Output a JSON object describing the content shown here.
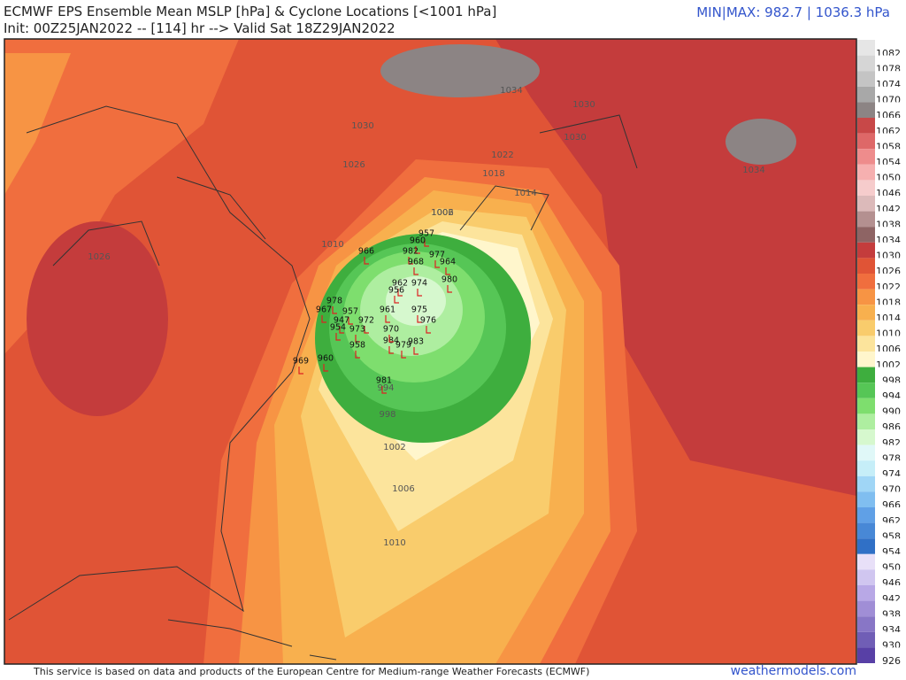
{
  "header": {
    "title": "ECMWF EPS Ensemble Mean MSLP [hPa] & Cyclone Locations [<1001 hPa]",
    "subtitle": "Init: 00Z25JAN2022 -- [114] hr --> Valid Sat 18Z29JAN2022",
    "minmax": "MIN|MAX: 982.7 | 1036.3 hPa"
  },
  "colorbar": [
    {
      "label": "1082",
      "color": "#e6e6e6"
    },
    {
      "label": "1078",
      "color": "#d6d6d6"
    },
    {
      "label": "1074",
      "color": "#c4c4c4"
    },
    {
      "label": "1070",
      "color": "#a8a8a8"
    },
    {
      "label": "1066",
      "color": "#8c8484"
    },
    {
      "label": "1062",
      "color": "#c84848"
    },
    {
      "label": "1058",
      "color": "#de6868"
    },
    {
      "label": "1054",
      "color": "#ee8c8c"
    },
    {
      "label": "1050",
      "color": "#f6b0b0"
    },
    {
      "label": "1046",
      "color": "#f6cccc"
    },
    {
      "label": "1042",
      "color": "#dcbaba"
    },
    {
      "label": "1038",
      "color": "#b49090"
    },
    {
      "label": "1034",
      "color": "#8e6464"
    },
    {
      "label": "1030",
      "color": "#c43c3c"
    },
    {
      "label": "1026",
      "color": "#e05436"
    },
    {
      "label": "1022",
      "color": "#f06e3e"
    },
    {
      "label": "1018",
      "color": "#f79444"
    },
    {
      "label": "1014",
      "color": "#f8b04e"
    },
    {
      "label": "1010",
      "color": "#f9cc6c"
    },
    {
      "label": "1006",
      "color": "#fce49c"
    },
    {
      "label": "1002",
      "color": "#fff6cc"
    },
    {
      "label": "998",
      "color": "#3eae3e"
    },
    {
      "label": "994",
      "color": "#56c656"
    },
    {
      "label": "990",
      "color": "#7ede6e"
    },
    {
      "label": "986",
      "color": "#aeeea0"
    },
    {
      "label": "982",
      "color": "#d6f8ce"
    },
    {
      "label": "978",
      "color": "#e0f8f8"
    },
    {
      "label": "974",
      "color": "#c6eef8"
    },
    {
      "label": "970",
      "color": "#a0d6f6"
    },
    {
      "label": "966",
      "color": "#80bef0"
    },
    {
      "label": "962",
      "color": "#60a0e6"
    },
    {
      "label": "958",
      "color": "#4888d6"
    },
    {
      "label": "954",
      "color": "#3070c6"
    },
    {
      "label": "950",
      "color": "#e8e0f8"
    },
    {
      "label": "946",
      "color": "#d0c6f0"
    },
    {
      "label": "942",
      "color": "#b8a8e6"
    },
    {
      "label": "938",
      "color": "#a08ed6"
    },
    {
      "label": "934",
      "color": "#8876c6"
    },
    {
      "label": "930",
      "color": "#705eb6"
    },
    {
      "label": "926",
      "color": "#5840a6"
    }
  ],
  "contour_labels": [
    "1034",
    "1030",
    "1030",
    "1026",
    "1022",
    "1018",
    "1014",
    "1010",
    "1006",
    "1002",
    "998",
    "994",
    "1002",
    "1006",
    "1010",
    "1030",
    "1034",
    "1026"
  ],
  "cyclone_labels": [
    "966",
    "957",
    "960",
    "982",
    "977",
    "964",
    "968",
    "980",
    "974",
    "962",
    "956",
    "975",
    "976",
    "983",
    "979",
    "984",
    "970",
    "972",
    "961",
    "957",
    "947",
    "954",
    "973",
    "958",
    "960",
    "969",
    "981",
    "978",
    "967"
  ],
  "footer": {
    "credit": "This service is based on data and products of the European Centre for Medium-range Weather Forecasts (ECMWF)",
    "brand": "weathermodels.com"
  }
}
